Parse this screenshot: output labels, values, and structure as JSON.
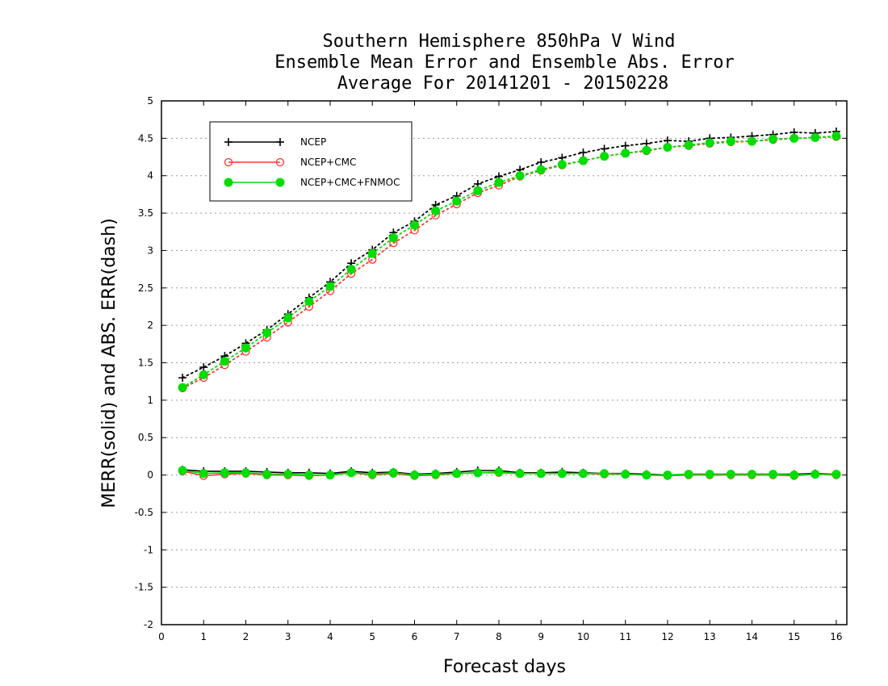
{
  "chart_data": {
    "type": "line",
    "title_lines": [
      "Southern Hemisphere 850hPa V Wind",
      "Ensemble Mean Error and Ensemble Abs. Error",
      "Average For 20141201 - 20150228"
    ],
    "xlabel": "Forecast days",
    "ylabel": "MERR(solid) and ABS. ERR(dash)",
    "xlim": [
      0,
      16.25
    ],
    "ylim": [
      -2,
      5
    ],
    "xticks": [
      0,
      1,
      2,
      3,
      4,
      5,
      6,
      7,
      8,
      9,
      10,
      11,
      12,
      13,
      14,
      15,
      16
    ],
    "yticks": [
      -2,
      -1.5,
      -1,
      -0.5,
      0,
      0.5,
      1,
      1.5,
      2,
      2.5,
      3,
      3.5,
      4,
      4.5,
      5
    ],
    "ytick_labels": [
      "-2",
      "-1.5",
      "-1",
      "-0.5",
      "0",
      "0.5",
      "1",
      "1.5",
      "2",
      "2.5",
      "3",
      "3.5",
      "4",
      "4.5",
      "5"
    ],
    "grid": "horizontal dotted",
    "legend_position": "top-left",
    "x": [
      0.5,
      1,
      1.5,
      2,
      2.5,
      3,
      3.5,
      4,
      4.5,
      5,
      5.5,
      6,
      6.5,
      7,
      7.5,
      8,
      8.5,
      9,
      9.5,
      10,
      10.5,
      11,
      11.5,
      12,
      12.5,
      13,
      13.5,
      14,
      14.5,
      15,
      15.5,
      16
    ],
    "series": [
      {
        "name": "NCEP",
        "color": "#000000",
        "marker": "plus",
        "abs_error": [
          1.3,
          1.44,
          1.59,
          1.76,
          1.94,
          2.15,
          2.37,
          2.58,
          2.83,
          3.01,
          3.24,
          3.39,
          3.61,
          3.73,
          3.89,
          3.99,
          4.08,
          4.18,
          4.24,
          4.31,
          4.36,
          4.4,
          4.43,
          4.47,
          4.46,
          4.5,
          4.51,
          4.53,
          4.55,
          4.58,
          4.57,
          4.59
        ],
        "mean_error": [
          0.07,
          0.05,
          0.05,
          0.05,
          0.04,
          0.03,
          0.03,
          0.02,
          0.05,
          0.03,
          0.04,
          0.01,
          0.02,
          0.04,
          0.06,
          0.06,
          0.03,
          0.03,
          0.04,
          0.03,
          0.02,
          0.02,
          0.01,
          0.0,
          0.01,
          0.01,
          0.01,
          0.01,
          0.01,
          0.01,
          0.02,
          0.01
        ]
      },
      {
        "name": "NCEP+CMC",
        "color": "#ff3333",
        "marker": "open-circle",
        "abs_error": [
          1.16,
          1.3,
          1.47,
          1.65,
          1.84,
          2.04,
          2.25,
          2.46,
          2.69,
          2.88,
          3.1,
          3.27,
          3.47,
          3.62,
          3.77,
          3.87,
          3.99,
          4.07,
          4.14,
          4.2,
          4.26,
          4.3,
          4.33,
          4.38,
          4.4,
          4.43,
          4.45,
          4.46,
          4.48,
          4.5,
          4.51,
          4.52
        ],
        "mean_error": [
          0.05,
          -0.01,
          0.01,
          0.02,
          0.0,
          0.0,
          -0.01,
          0.0,
          0.03,
          0.0,
          0.02,
          -0.01,
          0.0,
          0.02,
          0.03,
          0.03,
          0.02,
          0.02,
          0.02,
          0.02,
          0.01,
          0.01,
          0.0,
          -0.01,
          0.0,
          0.0,
          0.0,
          0.0,
          0.0,
          -0.01,
          0.01,
          0.0
        ]
      },
      {
        "name": "NCEP+CMC+FNMOC",
        "color": "#00dd00",
        "marker": "filled-circle",
        "abs_error": [
          1.17,
          1.34,
          1.52,
          1.7,
          1.9,
          2.1,
          2.32,
          2.52,
          2.75,
          2.96,
          3.17,
          3.34,
          3.53,
          3.66,
          3.8,
          3.91,
          4.0,
          4.08,
          4.15,
          4.2,
          4.26,
          4.3,
          4.34,
          4.38,
          4.41,
          4.44,
          4.46,
          4.46,
          4.49,
          4.5,
          4.51,
          4.53
        ],
        "mean_error": [
          0.06,
          0.02,
          0.03,
          0.03,
          0.01,
          0.01,
          0.0,
          0.0,
          0.03,
          0.01,
          0.03,
          0.0,
          0.01,
          0.02,
          0.03,
          0.04,
          0.02,
          0.02,
          0.02,
          0.02,
          0.02,
          0.01,
          0.0,
          0.0,
          0.01,
          0.01,
          0.01,
          0.01,
          0.01,
          0.0,
          0.01,
          0.01
        ]
      }
    ]
  }
}
